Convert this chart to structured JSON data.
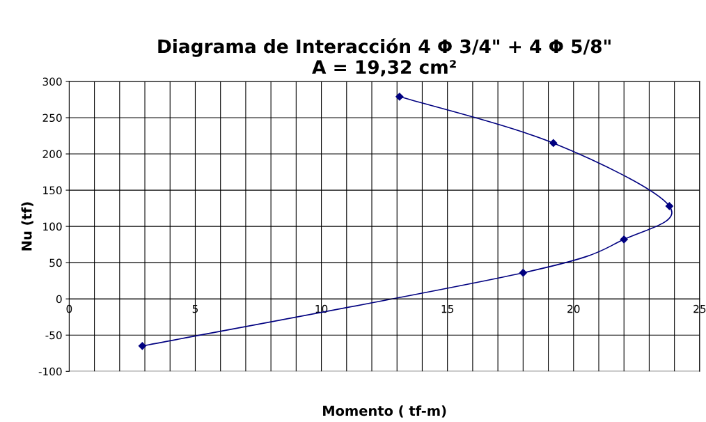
{
  "chart_data": {
    "type": "line",
    "title": "Diagrama de Interacción 4 Φ 3/4\" + 4 Φ 5/8\"\nA = 19,32 cm²",
    "xlabel": "Momento ( tf-m)",
    "ylabel": "Nu (tf)",
    "series": [
      {
        "color": "#000080",
        "x": [
          13.1,
          19.2,
          23.8,
          22.0,
          18.0,
          2.9
        ],
        "values": [
          279,
          215,
          128,
          82,
          36,
          -65
        ]
      }
    ],
    "xlim": [
      0,
      25
    ],
    "ylim": [
      -100,
      300
    ],
    "xticks": [
      0,
      {
        "value": 1,
        "label": null
      },
      {
        "value": 2,
        "label": null
      },
      {
        "value": 3,
        "label": null
      },
      {
        "value": 4,
        "label": null
      },
      5,
      {
        "value": 6,
        "label": null
      },
      {
        "value": 7,
        "label": null
      },
      {
        "value": 8,
        "label": null
      },
      {
        "value": 9,
        "label": null
      },
      10,
      {
        "value": 11,
        "label": null
      },
      {
        "value": 12,
        "label": null
      },
      {
        "value": 13,
        "label": null
      },
      {
        "value": 14,
        "label": null
      },
      15,
      {
        "value": 16,
        "label": null
      },
      {
        "value": 17,
        "label": null
      },
      {
        "value": 18,
        "label": null
      },
      {
        "value": 19,
        "label": null
      },
      20,
      {
        "value": 21,
        "label": null
      },
      {
        "value": 22,
        "label": null
      },
      {
        "value": 23,
        "label": null
      },
      {
        "value": 24,
        "label": null
      },
      25
    ],
    "yticks": [
      -100,
      -50,
      0,
      50,
      100,
      150,
      200,
      250,
      300
    ],
    "grid": true,
    "marker": "diamond",
    "line_style": "solid"
  }
}
